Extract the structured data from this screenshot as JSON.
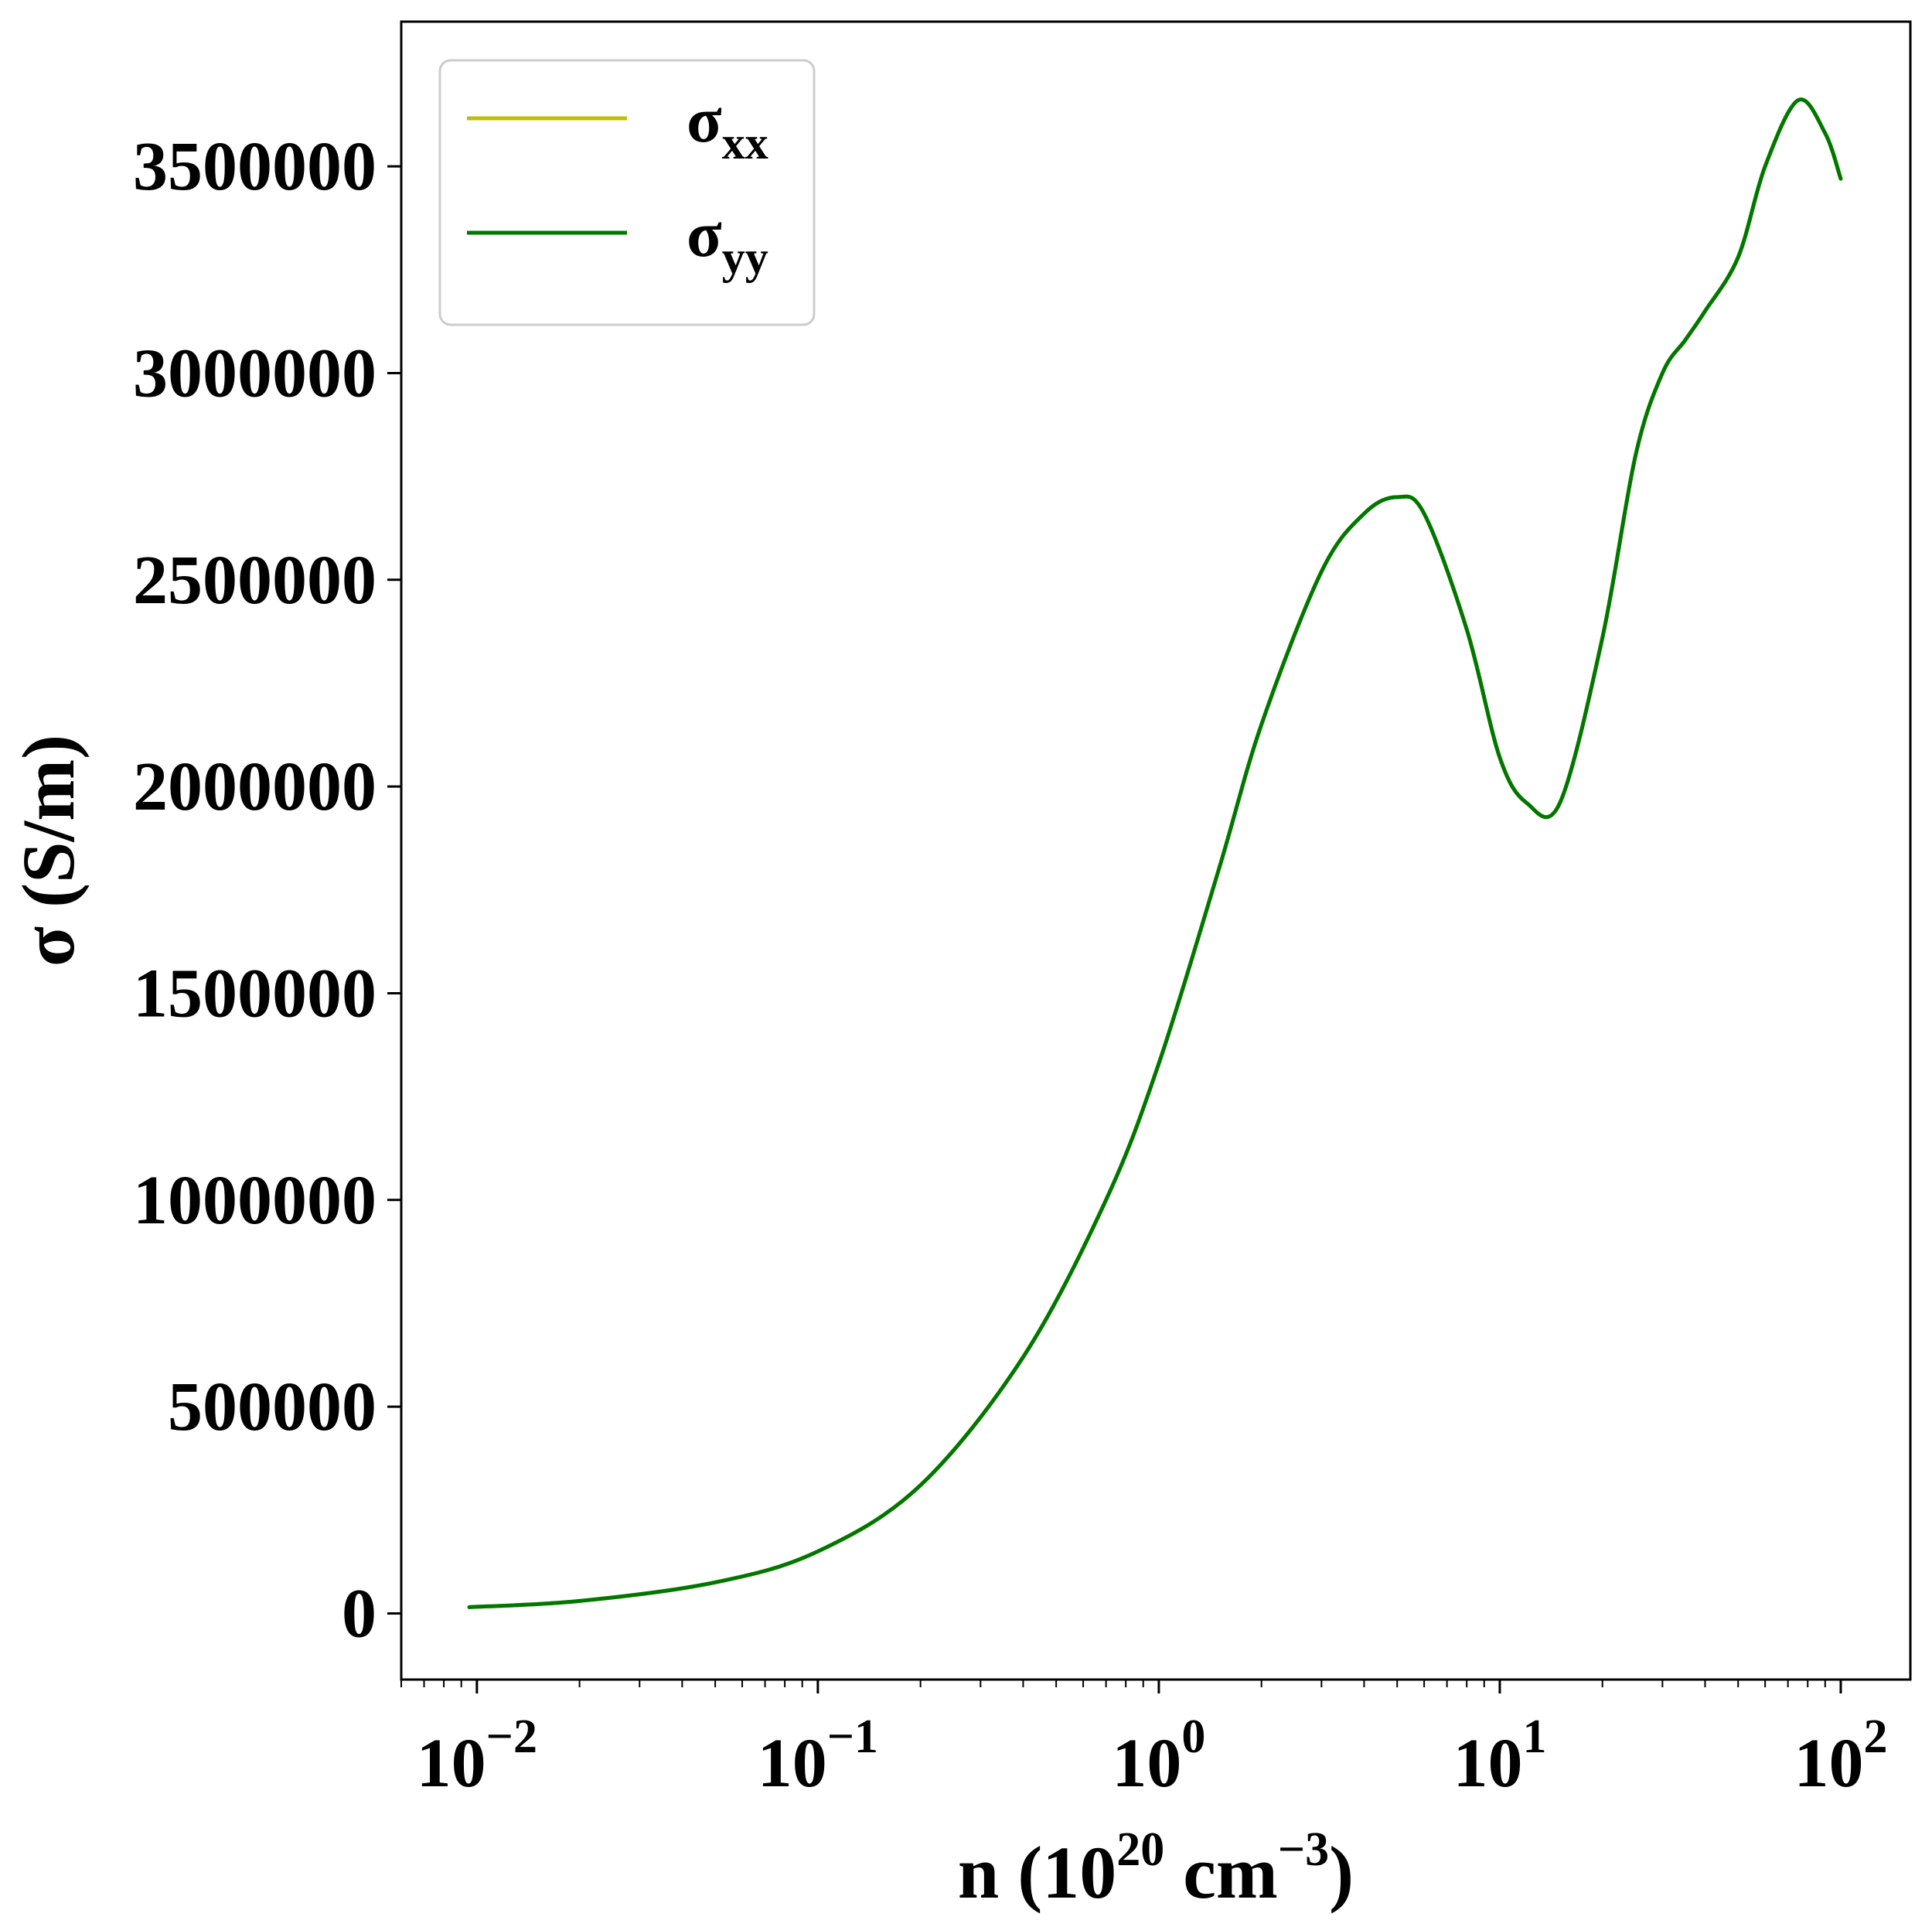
{
  "chart_data": {
    "type": "line",
    "xscale": "log",
    "xlim": [
      0.006,
      160
    ],
    "ylim": [
      -160000,
      3850000
    ],
    "xticks": [
      {
        "base": "10",
        "exp": "−2",
        "value": 0.01
      },
      {
        "base": "10",
        "exp": "−1",
        "value": 0.1
      },
      {
        "base": "10",
        "exp": "0",
        "value": 1
      },
      {
        "base": "10",
        "exp": "1",
        "value": 10
      },
      {
        "base": "10",
        "exp": "2",
        "value": 100
      }
    ],
    "yticks": [
      {
        "label": "0",
        "value": 0
      },
      {
        "label": "500000",
        "value": 500000
      },
      {
        "label": "1000000",
        "value": 1000000
      },
      {
        "label": "1500000",
        "value": 1500000
      },
      {
        "label": "2000000",
        "value": 2000000
      },
      {
        "label": "2500000",
        "value": 2500000
      },
      {
        "label": "3000000",
        "value": 3000000
      },
      {
        "label": "3500000",
        "value": 3500000
      }
    ],
    "xlabel": {
      "pre": "n (10",
      "sup1": "20",
      "mid": " cm",
      "sup2": "−3",
      "post": ")"
    },
    "ylabel": "σ (S/m)",
    "legend": {
      "placement": "upper-left"
    },
    "series": [
      {
        "name": {
          "base": "σ",
          "sub": "xx"
        },
        "color": "#bfbf00",
        "x": [
          0.0095,
          0.02,
          0.05,
          0.1,
          0.2,
          0.4,
          0.7,
          1.0,
          1.5,
          2.0,
          3.0,
          4.0,
          5.0,
          6.0,
          8.0,
          10.0,
          12.0,
          15.0,
          20.0,
          25.0,
          30.0,
          35.0,
          40.0,
          50.0,
          60.0,
          75.0,
          90.0,
          100.0
        ],
        "y": [
          15000,
          30000,
          75000,
          150000,
          310000,
          620000,
          1000000,
          1330000,
          1800000,
          2150000,
          2520000,
          2660000,
          2700000,
          2660000,
          2380000,
          2070000,
          1960000,
          1960000,
          2360000,
          2800000,
          3000000,
          3080000,
          3150000,
          3280000,
          3500000,
          3660000,
          3580000,
          3470000
        ]
      },
      {
        "name": {
          "base": "σ",
          "sub": "yy"
        },
        "color": "#007700",
        "x": [
          0.0095,
          0.02,
          0.05,
          0.1,
          0.2,
          0.4,
          0.7,
          1.0,
          1.5,
          2.0,
          3.0,
          4.0,
          5.0,
          6.0,
          8.0,
          10.0,
          12.0,
          15.0,
          20.0,
          25.0,
          30.0,
          35.0,
          40.0,
          50.0,
          60.0,
          75.0,
          90.0,
          100.0
        ],
        "y": [
          15000,
          30000,
          75000,
          150000,
          310000,
          620000,
          1000000,
          1330000,
          1800000,
          2150000,
          2520000,
          2660000,
          2700000,
          2660000,
          2380000,
          2070000,
          1960000,
          1960000,
          2360000,
          2800000,
          3000000,
          3080000,
          3150000,
          3280000,
          3500000,
          3660000,
          3580000,
          3470000
        ]
      }
    ]
  }
}
